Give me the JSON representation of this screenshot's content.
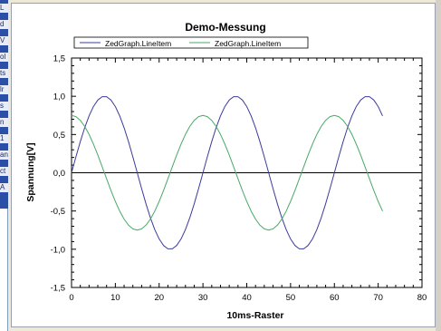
{
  "left_strip": {
    "tags": [
      "L",
      "d",
      "V",
      "ol",
      "ts",
      "lr",
      "s",
      "n",
      "1",
      "an",
      "ct",
      "A"
    ]
  },
  "chart_data": {
    "type": "line",
    "title": "Demo-Messung",
    "xlabel": "10ms-Raster",
    "ylabel": "Spannung[V]",
    "xlim": [
      0,
      80
    ],
    "ylim": [
      -1.5,
      1.5
    ],
    "x_ticks": [
      "0",
      "10",
      "20",
      "30",
      "40",
      "50",
      "60",
      "70",
      "80"
    ],
    "y_ticks": [
      "1,5",
      "1,0",
      "0,5",
      "0,0",
      "-0,5",
      "-1,0",
      "-1,5"
    ],
    "zero_line": true,
    "legend": "top",
    "series": [
      {
        "name": "ZedGraph.LineItem",
        "color": "#3b3b9e",
        "x": [
          0,
          1,
          2,
          3,
          4,
          5,
          6,
          7,
          8,
          9,
          10,
          11,
          12,
          13,
          14,
          15,
          16,
          17,
          18,
          19,
          20,
          21,
          22,
          23,
          24,
          25,
          26,
          27,
          28,
          29,
          30,
          31,
          32,
          33,
          34,
          35,
          36,
          37,
          38,
          39,
          40,
          41,
          42,
          43,
          44,
          45,
          46,
          47,
          48,
          49,
          50,
          51,
          52,
          53,
          54,
          55,
          56,
          57,
          58,
          59,
          60,
          61,
          62,
          63,
          64,
          65,
          66,
          67,
          68,
          69,
          70,
          71
        ],
        "y": [
          0.0,
          0.208,
          0.407,
          0.588,
          0.743,
          0.866,
          0.951,
          0.995,
          0.995,
          0.951,
          0.866,
          0.743,
          0.588,
          0.407,
          0.208,
          0.0,
          -0.208,
          -0.407,
          -0.588,
          -0.743,
          -0.866,
          -0.951,
          -0.995,
          -0.995,
          -0.951,
          -0.866,
          -0.743,
          -0.588,
          -0.407,
          -0.208,
          0.0,
          0.208,
          0.407,
          0.588,
          0.743,
          0.866,
          0.951,
          0.995,
          0.995,
          0.951,
          0.866,
          0.743,
          0.588,
          0.407,
          0.208,
          0.0,
          -0.208,
          -0.407,
          -0.588,
          -0.743,
          -0.866,
          -0.951,
          -0.995,
          -0.995,
          -0.951,
          -0.866,
          -0.743,
          -0.588,
          -0.407,
          -0.208,
          0.0,
          0.208,
          0.407,
          0.588,
          0.743,
          0.866,
          0.951,
          0.995,
          0.995,
          0.951,
          0.866,
          0.743
        ]
      },
      {
        "name": "ZedGraph.LineItem",
        "color": "#4aa86a",
        "x": [
          0,
          1,
          2,
          3,
          4,
          5,
          6,
          7,
          8,
          9,
          10,
          11,
          12,
          13,
          14,
          15,
          16,
          17,
          18,
          19,
          20,
          21,
          22,
          23,
          24,
          25,
          26,
          27,
          28,
          29,
          30,
          31,
          32,
          33,
          34,
          35,
          36,
          37,
          38,
          39,
          40,
          41,
          42,
          43,
          44,
          45,
          46,
          47,
          48,
          49,
          50,
          51,
          52,
          53,
          54,
          55,
          56,
          57,
          58,
          59,
          60,
          61,
          62,
          63,
          64,
          65,
          66,
          67,
          68,
          69,
          70,
          71
        ],
        "y": [
          0.75,
          0.734,
          0.685,
          0.606,
          0.502,
          0.375,
          0.232,
          0.078,
          -0.078,
          -0.232,
          -0.375,
          -0.502,
          -0.606,
          -0.685,
          -0.734,
          -0.75,
          -0.734,
          -0.685,
          -0.606,
          -0.502,
          -0.375,
          -0.232,
          -0.078,
          0.078,
          0.232,
          0.375,
          0.502,
          0.606,
          0.685,
          0.734,
          0.75,
          0.734,
          0.685,
          0.606,
          0.502,
          0.375,
          0.232,
          0.078,
          -0.078,
          -0.232,
          -0.375,
          -0.502,
          -0.606,
          -0.685,
          -0.734,
          -0.75,
          -0.734,
          -0.685,
          -0.606,
          -0.502,
          -0.375,
          -0.232,
          -0.078,
          0.078,
          0.232,
          0.375,
          0.502,
          0.606,
          0.685,
          0.734,
          0.75,
          0.734,
          0.685,
          0.606,
          0.502,
          0.375,
          0.232,
          0.078,
          -0.078,
          -0.232,
          -0.375,
          -0.502
        ]
      }
    ]
  }
}
